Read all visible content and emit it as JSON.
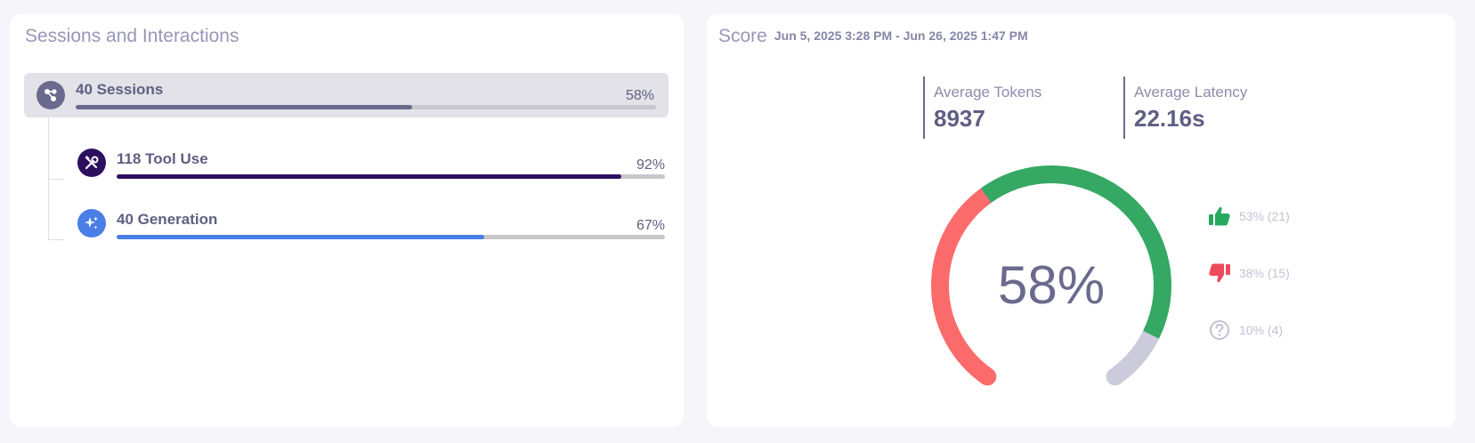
{
  "left_card": {
    "title": "Sessions and Interactions",
    "sessions": {
      "label": "40 Sessions",
      "percent_text": "58%",
      "fraction": 0.58,
      "icon": "sessions-nodes-icon",
      "color": "#6a6a8e"
    },
    "children": [
      {
        "label": "118 Tool Use",
        "percent_text": "92%",
        "fraction": 0.92,
        "icon": "tools-icon",
        "color": "#2d0f5f"
      },
      {
        "label": "40 Generation",
        "percent_text": "67%",
        "fraction": 0.67,
        "icon": "sparkle-icon",
        "color": "#4a7ee6"
      }
    ]
  },
  "right_card": {
    "title": "Score",
    "date_range": "Jun 5, 2025 3:28 PM - Jun 26, 2025 1:47 PM",
    "metrics": [
      {
        "label": "Average Tokens",
        "value": "8937"
      },
      {
        "label": "Average Latency",
        "value": "22.16s"
      }
    ],
    "gauge": {
      "center_text": "58%",
      "segments": [
        {
          "name": "negative",
          "fraction": 0.38,
          "color": "#fb6b6b"
        },
        {
          "name": "positive",
          "fraction": 0.53,
          "color": "#35a864"
        },
        {
          "name": "unknown",
          "fraction": 0.1,
          "color": "#cbcbdc"
        }
      ]
    },
    "legend": [
      {
        "icon": "thumbs-up-icon",
        "text": "53% (21)",
        "color": "#27a85f"
      },
      {
        "icon": "thumbs-down-icon",
        "text": "38% (15)",
        "color": "#ee4a5a"
      },
      {
        "icon": "question-circle-icon",
        "text": "10% (4)",
        "color": "#c2c2d4"
      }
    ]
  }
}
